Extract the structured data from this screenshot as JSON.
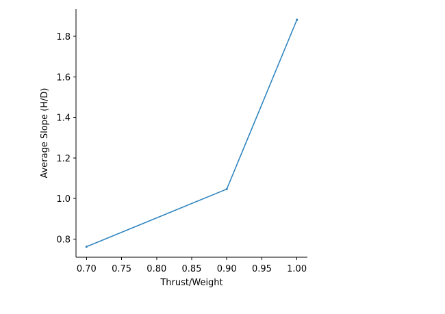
{
  "chart_data": {
    "type": "line",
    "title": "",
    "xlabel": "Thrust/Weight",
    "ylabel": "Average Slope (H/D)",
    "xlim": [
      0.685,
      1.015
    ],
    "ylim": [
      0.71,
      1.935
    ],
    "xticks": [
      0.7,
      0.75,
      0.8,
      0.85,
      0.9,
      0.95,
      1.0
    ],
    "xtick_labels": [
      "0.70",
      "0.75",
      "0.80",
      "0.85",
      "0.90",
      "0.95",
      "1.00"
    ],
    "yticks": [
      0.8,
      1.0,
      1.2,
      1.4,
      1.6,
      1.8
    ],
    "ytick_labels": [
      "0.8",
      "1.0",
      "1.2",
      "1.4",
      "1.6",
      "1.8"
    ],
    "grid": false,
    "series": [
      {
        "color": "#2f85bf",
        "x": [
          0.7,
          0.9,
          1.0
        ],
        "y": [
          0.762,
          1.046,
          1.881
        ]
      }
    ]
  }
}
